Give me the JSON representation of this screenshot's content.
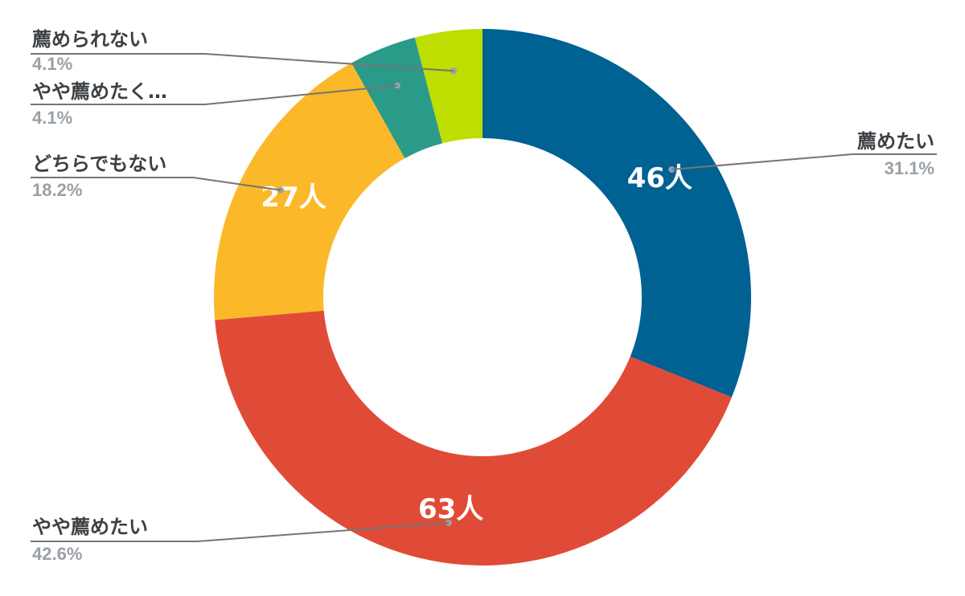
{
  "chart_data": {
    "type": "pie",
    "variant": "donut",
    "unit": "人",
    "slices": [
      {
        "label": "薦めたい",
        "value": 46,
        "percent": "31.1%",
        "color": "#006193",
        "value_label": "46人"
      },
      {
        "label": "やや薦めたい",
        "value": 63,
        "percent": "42.6%",
        "color": "#e04b37",
        "value_label": "63人"
      },
      {
        "label": "どちらでもない",
        "value": 27,
        "percent": "18.2%",
        "color": "#fbb829",
        "value_label": "27人"
      },
      {
        "label": "やや薦めたく…",
        "value": 6,
        "percent": "4.1%",
        "color": "#2a9a89",
        "value_label": ""
      },
      {
        "label": "薦められない",
        "value": 6,
        "percent": "4.1%",
        "color": "#bedd00",
        "value_label": ""
      }
    ]
  }
}
